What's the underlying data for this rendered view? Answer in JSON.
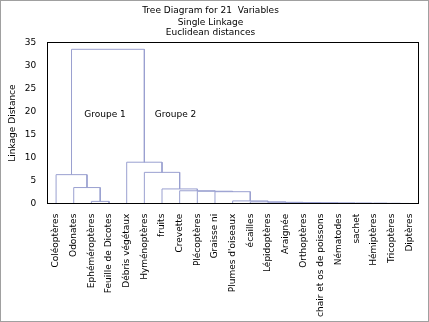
{
  "chart_data": {
    "type": "dendrogram",
    "title": "Tree Diagram for 21  Variables",
    "subtitle": [
      "Single Linkage",
      "Euclidean distances"
    ],
    "y_label": "Linkage Distance",
    "annotations": [
      "Groupe 1",
      "Groupe 2"
    ],
    "categories": [
      "Coléoptères",
      "Odonates",
      "Ephéméroptères",
      "Feuille de Dicotes",
      "Débris végétaux",
      "Hyménoptères",
      "fruits",
      "Crevette",
      "Plécoptères",
      "Graisse ni",
      "Plumes d'oiseaux",
      "écailles",
      "Lépidoptères",
      "Araignée",
      "Orthoptères",
      "chair et os de poissons",
      "Nématodes",
      "sachet",
      "Hémiptères",
      "Tricoptères",
      "Diptères"
    ],
    "merges": [
      [
        19,
        20,
        0.05
      ],
      [
        18,
        21,
        0.08
      ],
      [
        17,
        22,
        0.1
      ],
      [
        16,
        23,
        0.12
      ],
      [
        15,
        24,
        0.15
      ],
      [
        14,
        25,
        0.2
      ],
      [
        13,
        26,
        0.25
      ],
      [
        12,
        27,
        0.3
      ],
      [
        11,
        28,
        0.4
      ],
      [
        2,
        3,
        0.5
      ],
      [
        10,
        29,
        0.6
      ],
      [
        9,
        31,
        2.6
      ],
      [
        8,
        32,
        2.7
      ],
      [
        7,
        33,
        2.8
      ],
      [
        6,
        34,
        3.2
      ],
      [
        1,
        30,
        3.5
      ],
      [
        0,
        36,
        6.3
      ],
      [
        5,
        35,
        6.8
      ],
      [
        4,
        38,
        9.0
      ],
      [
        37,
        39,
        33.5
      ]
    ],
    "color": "#9aa0d0",
    "ylim": [
      0,
      35
    ],
    "yticks": [
      0,
      5,
      10,
      15,
      20,
      25,
      30,
      35
    ],
    "grid": false
  }
}
